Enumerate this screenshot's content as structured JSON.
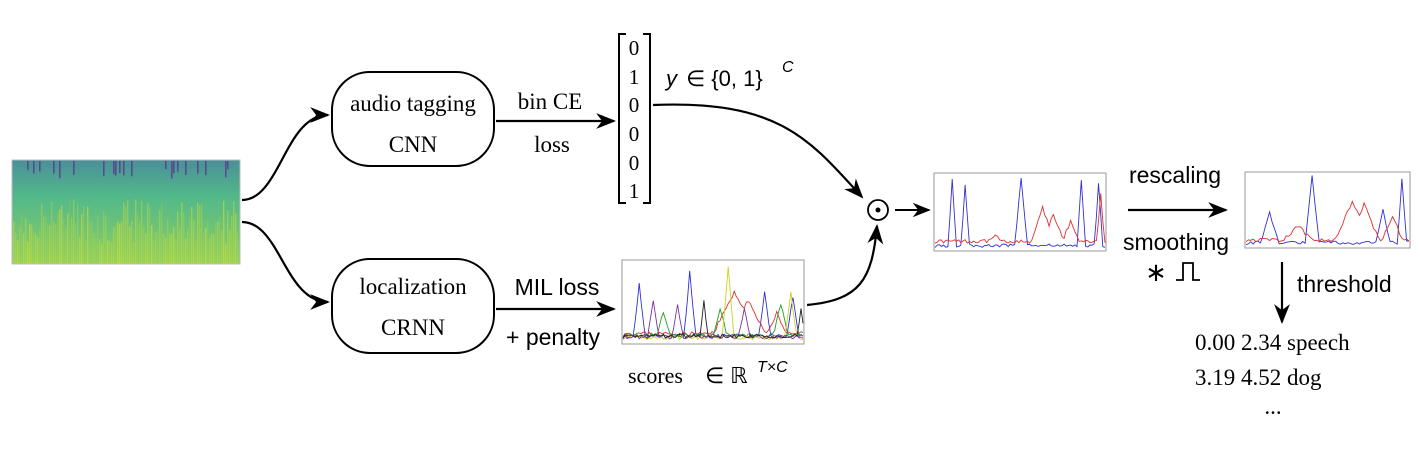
{
  "nodes": {
    "tagging": {
      "line1": "audio tagging",
      "line2": "CNN"
    },
    "localization": {
      "line1": "localization",
      "line2": "CRNN"
    }
  },
  "edges": {
    "tagging_loss": {
      "line1": "bin CE",
      "line2": "loss"
    },
    "localization_loss": {
      "line1": "MIL loss",
      "line2": "+ penalty"
    }
  },
  "label_vector": {
    "values": [
      "0",
      "1",
      "0",
      "0",
      "0",
      "1"
    ],
    "caption_var": "y",
    "caption_rel": "∈ {0, 1}",
    "caption_sup": "C"
  },
  "scores": {
    "caption_word": "scores",
    "caption_rel": "∈ ℝ",
    "caption_sup": "T×C"
  },
  "operator": "⊙",
  "post": {
    "rescaling": "rescaling",
    "smoothing": "smoothing",
    "conv_symbol": "∗",
    "threshold": "threshold"
  },
  "output_events": [
    "0.00 2.34 speech",
    "3.19 4.52 dog",
    "..."
  ],
  "colors": {
    "stroke": "#000000",
    "plot_blue": "#3030d8",
    "plot_red": "#e03030",
    "spectrogram_bg": "#52b88a",
    "spectrogram_yellow": "#d8e030",
    "spectrogram_purple": "#5a2d8a"
  }
}
